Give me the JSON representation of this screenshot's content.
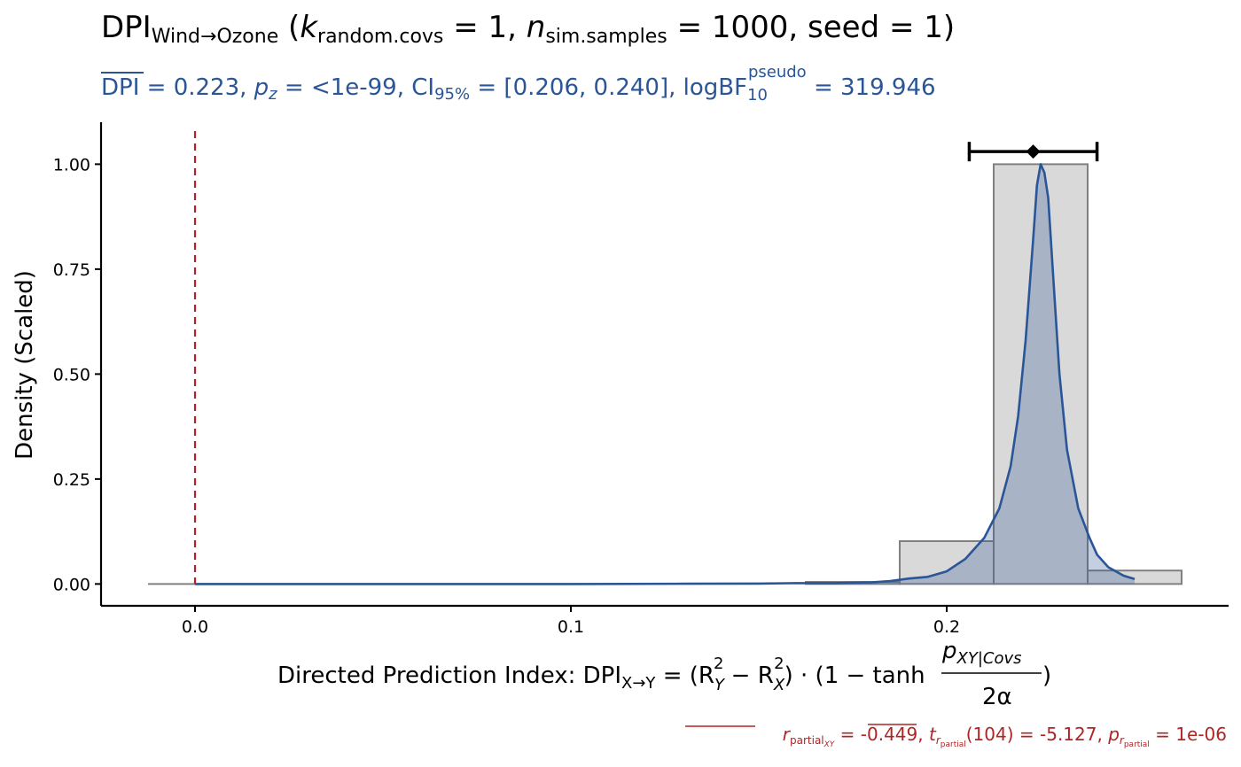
{
  "chart_data": {
    "type": "histogram",
    "title": {
      "prefix": "DPI",
      "subscript": "Wind→Ozone",
      "params_open": " (",
      "k": "k",
      "k_sub": "random.covs",
      "k_val": " = 1, ",
      "n": "n",
      "n_sub": "sim.samples",
      "n_val": " = 1000, seed = 1)"
    },
    "subtitle": {
      "dpi_bar": "DPI",
      "dpi_val": " = 0.223, ",
      "p": "p",
      "p_sub": "z",
      "p_val": " = <1e-99, CI",
      "ci_sub": "95%",
      "ci_val": " = [0.206, 0.240], logBF",
      "bf_sub": "10",
      "bf_sup": "pseudo",
      "bf_val": " = 319.946"
    },
    "xlabel": {
      "prefix": "Directed Prediction Index: DPI",
      "sub": "X→Y",
      "formula_a": " = (R",
      "ry_sub": "Y",
      "sq1": "2",
      "minus_r": " − R",
      "rx_sub": "X",
      "sq2": "2",
      "formula_b": ") · (1 − tanh",
      "num_p": "p",
      "num_sub": "XY|Covs",
      "den": "2α",
      "close": ")"
    },
    "ylabel": "Density (Scaled)",
    "caption": {
      "r": "r",
      "r_sub": "partial",
      "r_subsub": "XY",
      "r_val": " = -0.449, ",
      "t": "t",
      "t_sub": "r",
      "t_subsub": "partial",
      "t_val": "(104) = -5.127, ",
      "p": "p",
      "p_sub": "r",
      "p_subsub": "partial",
      "p_val": " = 1e-06"
    },
    "xlim": [
      -0.025,
      0.275
    ],
    "ylim": [
      -0.052,
      1.1
    ],
    "x_ticks": [
      0.0,
      0.1,
      0.2
    ],
    "x_tick_labels": [
      "0.0",
      "0.1",
      "0.2"
    ],
    "y_ticks": [
      0.0,
      0.25,
      0.5,
      0.75,
      1.0
    ],
    "y_tick_labels": [
      "0.00",
      "0.25",
      "0.50",
      "0.75",
      "1.00"
    ],
    "bins": [
      {
        "x0": -0.0125,
        "x1": 0.0125,
        "density": 0.0
      },
      {
        "x0": 0.1625,
        "x1": 0.1875,
        "density": 0.005
      },
      {
        "x0": 0.1875,
        "x1": 0.2125,
        "density": 0.102
      },
      {
        "x0": 0.2125,
        "x1": 0.2375,
        "density": 1.0
      },
      {
        "x0": 0.2375,
        "x1": 0.2625,
        "density": 0.032
      }
    ],
    "density_curve": [
      [
        0.0,
        0.0
      ],
      [
        0.05,
        0.0
      ],
      [
        0.1,
        0.0
      ],
      [
        0.13,
        0.0005
      ],
      [
        0.15,
        0.001
      ],
      [
        0.16,
        0.002
      ],
      [
        0.17,
        0.002
      ],
      [
        0.18,
        0.004
      ],
      [
        0.185,
        0.007
      ],
      [
        0.19,
        0.013
      ],
      [
        0.195,
        0.017
      ],
      [
        0.2,
        0.03
      ],
      [
        0.205,
        0.06
      ],
      [
        0.21,
        0.11
      ],
      [
        0.214,
        0.18
      ],
      [
        0.217,
        0.28
      ],
      [
        0.219,
        0.4
      ],
      [
        0.221,
        0.58
      ],
      [
        0.223,
        0.82
      ],
      [
        0.224,
        0.95
      ],
      [
        0.225,
        1.0
      ],
      [
        0.226,
        0.98
      ],
      [
        0.227,
        0.92
      ],
      [
        0.228,
        0.78
      ],
      [
        0.23,
        0.5
      ],
      [
        0.232,
        0.32
      ],
      [
        0.235,
        0.18
      ],
      [
        0.238,
        0.11
      ],
      [
        0.24,
        0.07
      ],
      [
        0.243,
        0.04
      ],
      [
        0.247,
        0.02
      ],
      [
        0.25,
        0.012
      ]
    ],
    "point_estimate": 0.223,
    "ci95": [
      0.206,
      0.24
    ],
    "ci_y": 1.03,
    "reference_line_x": 0.0,
    "colors": {
      "bar_fill": "#d9d9d9",
      "bar_stroke": "#808080",
      "curve": "#2a5597",
      "curve_fill": "#2a5597",
      "ref_line": "#b02424",
      "ci": "#000000",
      "axis": "#000000"
    }
  }
}
